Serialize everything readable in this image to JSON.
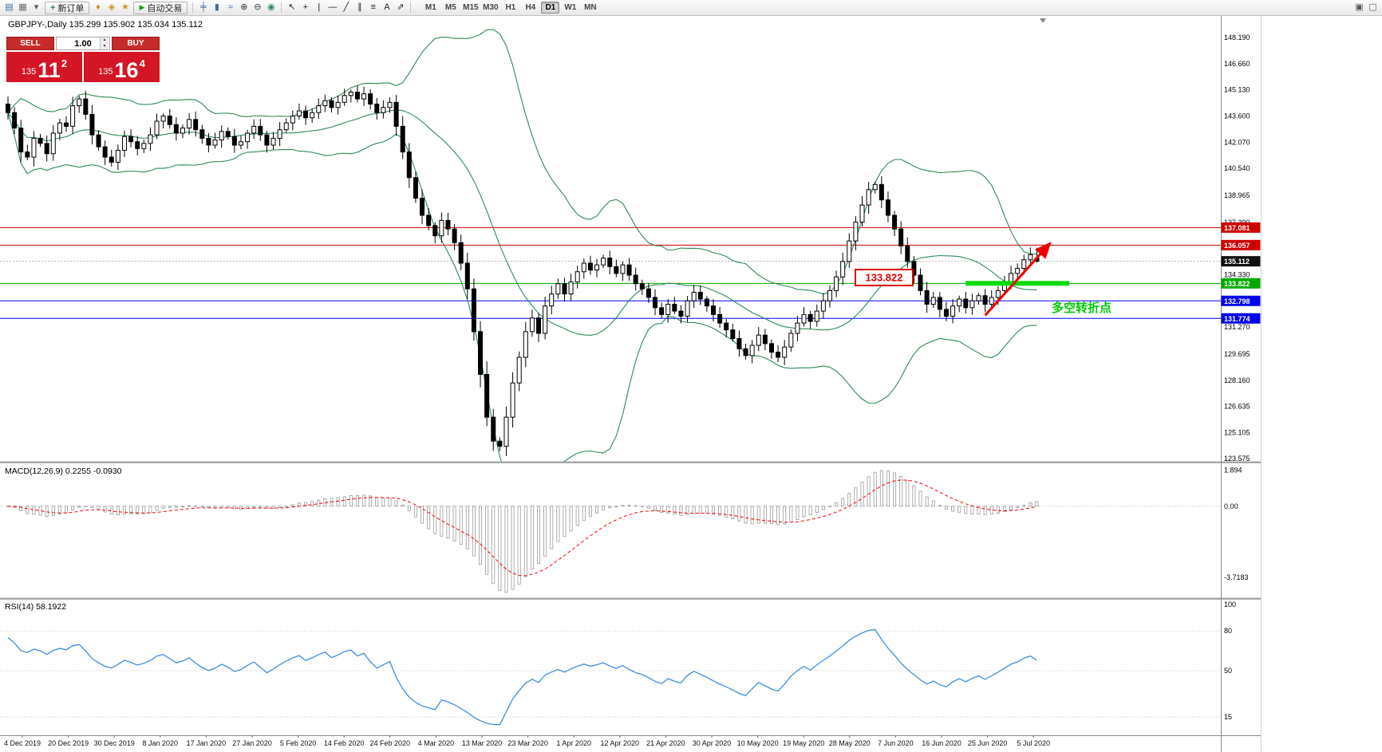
{
  "toolbar": {
    "new_order_label": "新订单",
    "autotrading_label": "自动交易",
    "timeframes": [
      "M1",
      "M5",
      "M15",
      "M30",
      "H1",
      "H4",
      "D1",
      "W1",
      "MN"
    ],
    "active_timeframe": "D1",
    "icon_groups": {
      "g1": [
        {
          "name": "new-chart-icon",
          "glyph": "▤",
          "color": "#3a6ea5"
        },
        {
          "name": "profiles-icon",
          "glyph": "▦",
          "color": "#6b6b6b"
        },
        {
          "name": "profiles-caret-icon",
          "glyph": "▾",
          "color": "#555555"
        }
      ],
      "g2": [
        {
          "name": "market-watch-icon",
          "glyph": "♦",
          "color": "#c9971c"
        },
        {
          "name": "data-window-icon",
          "glyph": "◈",
          "color": "#c9971c"
        },
        {
          "name": "navigator-icon",
          "glyph": "★",
          "color": "#c9971c"
        }
      ],
      "g3": [
        {
          "name": "bar-chart-icon",
          "glyph": "╪",
          "color": "#3a6ea5"
        },
        {
          "name": "candlestick-chart-icon",
          "glyph": "▮",
          "color": "#3a6ea5"
        },
        {
          "name": "line-chart-icon",
          "glyph": "≈",
          "color": "#3a6ea5"
        },
        {
          "name": "zoom-in-icon",
          "glyph": "⊕",
          "color": "#333333"
        },
        {
          "name": "zoom-out-icon",
          "glyph": "⊖",
          "color": "#333333"
        },
        {
          "name": "indicators-icon",
          "glyph": "◉",
          "color": "#2e8b57"
        }
      ],
      "g4": [
        {
          "name": "cursor-icon",
          "glyph": "↖",
          "color": "#222222"
        },
        {
          "name": "crosshair-icon",
          "glyph": "+",
          "color": "#222222"
        },
        {
          "name": "vertical-line-icon",
          "glyph": "|",
          "color": "#222222"
        },
        {
          "name": "horizontal-line-icon",
          "glyph": "—",
          "color": "#222222"
        },
        {
          "name": "trendline-icon",
          "glyph": "╱",
          "color": "#222222"
        },
        {
          "name": "channel-icon",
          "glyph": "∥",
          "color": "#222222"
        },
        {
          "name": "fibonacci-icon",
          "glyph": "≡",
          "color": "#222222"
        },
        {
          "name": "text-icon",
          "glyph": "A",
          "color": "#222222"
        },
        {
          "name": "arrows-icon",
          "glyph": "⇗",
          "color": "#222222"
        }
      ],
      "right": [
        {
          "name": "tile-windows-icon",
          "glyph": "▣",
          "color": "#555555"
        },
        {
          "name": "chart-window-icon",
          "glyph": "▢",
          "color": "#555555"
        }
      ]
    }
  },
  "trade_panel": {
    "sell_label": "SELL",
    "buy_label": "BUY",
    "volume": "1.00",
    "bid": {
      "prefix": "135",
      "big": "11",
      "sup": "2"
    },
    "ask": {
      "prefix": "135",
      "big": "16",
      "sup": "4"
    },
    "panel_color": "#d41525"
  },
  "chart": {
    "title_line": "GBPJPY-,Daily 135.299 135.902 135.034 135.112",
    "symbol": "GBPJPY-",
    "period": "Daily",
    "axis_ticks": [
      148.19,
      146.66,
      145.13,
      143.6,
      142.07,
      140.54,
      138.965,
      137.39,
      134.33,
      131.27,
      129.695,
      128.16,
      126.635,
      125.105,
      123.575
    ],
    "hlines": [
      {
        "name": "resistance-line-1",
        "price": 137.081,
        "color": "#cc0000",
        "tag": "137.081"
      },
      {
        "name": "resistance-line-2",
        "price": 136.057,
        "color": "#cc0000",
        "tag": "136.057"
      },
      {
        "name": "pivot-line",
        "price": 133.822,
        "color": "#00aa00",
        "tag": "133.822"
      },
      {
        "name": "support-line-1",
        "price": 132.798,
        "color": "#0000ee",
        "tag": "132.798"
      },
      {
        "name": "support-line-2",
        "price": 131.774,
        "color": "#0000ee",
        "tag": "131.774"
      }
    ],
    "current_price": {
      "value": 135.112,
      "tag": "135.112",
      "color": "#111111"
    },
    "annotations": {
      "price_box_label": "133.822",
      "price_box_color": "#e00000",
      "note_text": "多空转折点",
      "note_color": "#00cc00",
      "green_segment": {
        "price": 133.822,
        "from_bar": 148,
        "to_bar": 164,
        "color": "#00dd00"
      },
      "arrow": {
        "from_bar": 151,
        "from_price": 131.95,
        "to_bar": 161,
        "to_price": 136.15,
        "color": "#ee0000"
      }
    }
  },
  "macd_panel": {
    "label_line": "MACD(12,26,9) 0.2255 -0.0930",
    "axis": [
      {
        "v": 1.894,
        "label": "1.894"
      },
      {
        "v": 0,
        "label": "0.00"
      },
      {
        "v": -3.7183,
        "label": "-3.7183"
      }
    ]
  },
  "rsi_panel": {
    "label_line": "RSI(14) 58.1922",
    "axis": [
      {
        "v": 100,
        "label": "100"
      },
      {
        "v": 80,
        "label": "80"
      },
      {
        "v": 50,
        "label": "50"
      },
      {
        "v": 15,
        "label": "15"
      }
    ],
    "levels": [
      80,
      50,
      15
    ]
  },
  "chart_data": {
    "type": "candlestick",
    "symbol": "GBPJPY-",
    "timeframe": "Daily",
    "visible_price_range": [
      123.35,
      149.45
    ],
    "x_labels": [
      "4 Dec 2019",
      "20 Dec 2019",
      "30 Dec 2019",
      "8 Jan 2020",
      "17 Jan 2020",
      "27 Jan 2020",
      "5 Feb 2020",
      "14 Feb 2020",
      "24 Feb 2020",
      "4 Mar 2020",
      "13 Mar 2020",
      "23 Mar 2020",
      "1 Apr 2020",
      "12 Apr 2020",
      "21 Apr 2020",
      "30 Apr 2020",
      "10 May 2020",
      "19 May 2020",
      "28 May 2020",
      "7 Jun 2020",
      "16 Jun 2020",
      "25 Jun 2020",
      "5 Jul 2020"
    ],
    "closes": [
      143.8,
      142.9,
      141.5,
      141.2,
      142.3,
      142.0,
      141.4,
      142.6,
      143.2,
      143.0,
      144.2,
      144.6,
      143.7,
      142.5,
      141.8,
      141.2,
      140.9,
      141.6,
      142.4,
      142.1,
      141.7,
      142.0,
      142.5,
      143.3,
      143.6,
      143.1,
      142.6,
      142.9,
      143.4,
      142.8,
      142.3,
      141.9,
      142.2,
      142.7,
      142.4,
      141.9,
      142.1,
      142.6,
      143.0,
      142.5,
      141.9,
      142.3,
      142.8,
      143.2,
      143.6,
      143.9,
      143.5,
      143.8,
      144.2,
      144.5,
      144.1,
      144.4,
      144.8,
      145.0,
      144.6,
      144.9,
      144.3,
      143.8,
      144.1,
      144.4,
      143.0,
      141.5,
      140.0,
      138.8,
      137.8,
      137.2,
      136.6,
      137.5,
      137.0,
      136.2,
      135.0,
      133.5,
      131.0,
      128.5,
      126.0,
      124.6,
      124.3,
      126.0,
      128.0,
      129.5,
      131.0,
      131.8,
      130.9,
      132.5,
      133.2,
      133.8,
      133.2,
      133.9,
      134.5,
      135.0,
      134.6,
      134.9,
      135.3,
      134.8,
      134.4,
      134.9,
      134.3,
      133.8,
      133.5,
      133.0,
      132.4,
      132.0,
      132.6,
      132.2,
      131.9,
      132.8,
      133.3,
      132.9,
      132.5,
      132.0,
      131.5,
      131.1,
      130.6,
      130.0,
      129.6,
      130.2,
      130.8,
      130.3,
      129.8,
      129.5,
      130.1,
      130.9,
      131.5,
      132.0,
      131.6,
      132.2,
      132.8,
      133.4,
      134.2,
      135.1,
      136.3,
      137.4,
      138.4,
      139.3,
      139.6,
      138.7,
      137.8,
      137.0,
      136.0,
      135.1,
      134.3,
      133.4,
      132.6,
      133.0,
      132.3,
      131.9,
      132.5,
      132.9,
      132.4,
      132.8,
      133.1,
      132.6,
      133.0,
      133.4,
      133.9,
      134.4,
      134.7,
      135.2,
      135.5,
      135.112
    ],
    "last_ohlc": {
      "open": 135.299,
      "high": 135.902,
      "low": 135.034,
      "close": 135.112
    },
    "indicators": {
      "bollinger": {
        "period": 20,
        "deviation": 2,
        "color": "#2e8b57"
      },
      "macd": {
        "fast": 12,
        "slow": 26,
        "signal": 9,
        "value": 0.2255,
        "signal_value": -0.093,
        "signal_color": "#ff0000",
        "histogram_color": "#9a9a9a"
      },
      "rsi": {
        "period": 14,
        "value": 58.1922,
        "color": "#3e8ede"
      }
    }
  }
}
